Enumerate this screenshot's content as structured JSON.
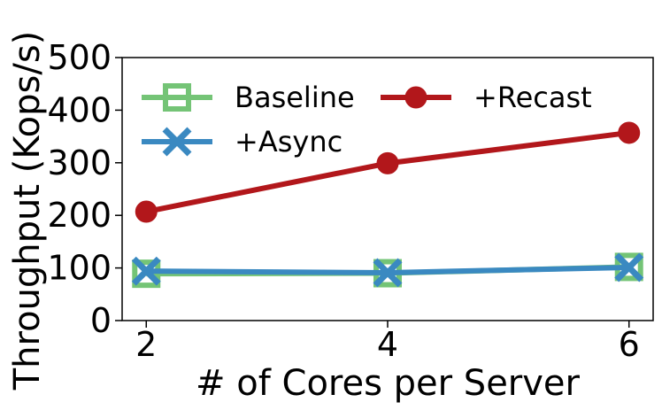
{
  "chart_data": {
    "type": "line",
    "title": "",
    "xlabel": "# of Cores per Server",
    "ylabel": "Throughput (Kops/s)",
    "x": [
      2,
      4,
      6
    ],
    "xticks": [
      "2",
      "4",
      "6"
    ],
    "xlim": [
      1.8,
      6.2
    ],
    "ylim": [
      0,
      500
    ],
    "yticks": [
      "0",
      "100",
      "200",
      "300",
      "400",
      "500"
    ],
    "grid": false,
    "legend_position": "top-left",
    "series": [
      {
        "name": "Baseline",
        "values": [
          89,
          90,
          102
        ],
        "color": "#74c476",
        "marker": "square"
      },
      {
        "name": "+Recast",
        "values": [
          207,
          299,
          357
        ],
        "color": "#b2171b",
        "marker": "circle"
      },
      {
        "name": "+Async",
        "values": [
          94,
          91,
          101
        ],
        "color": "#3a89c1",
        "marker": "x"
      }
    ]
  }
}
